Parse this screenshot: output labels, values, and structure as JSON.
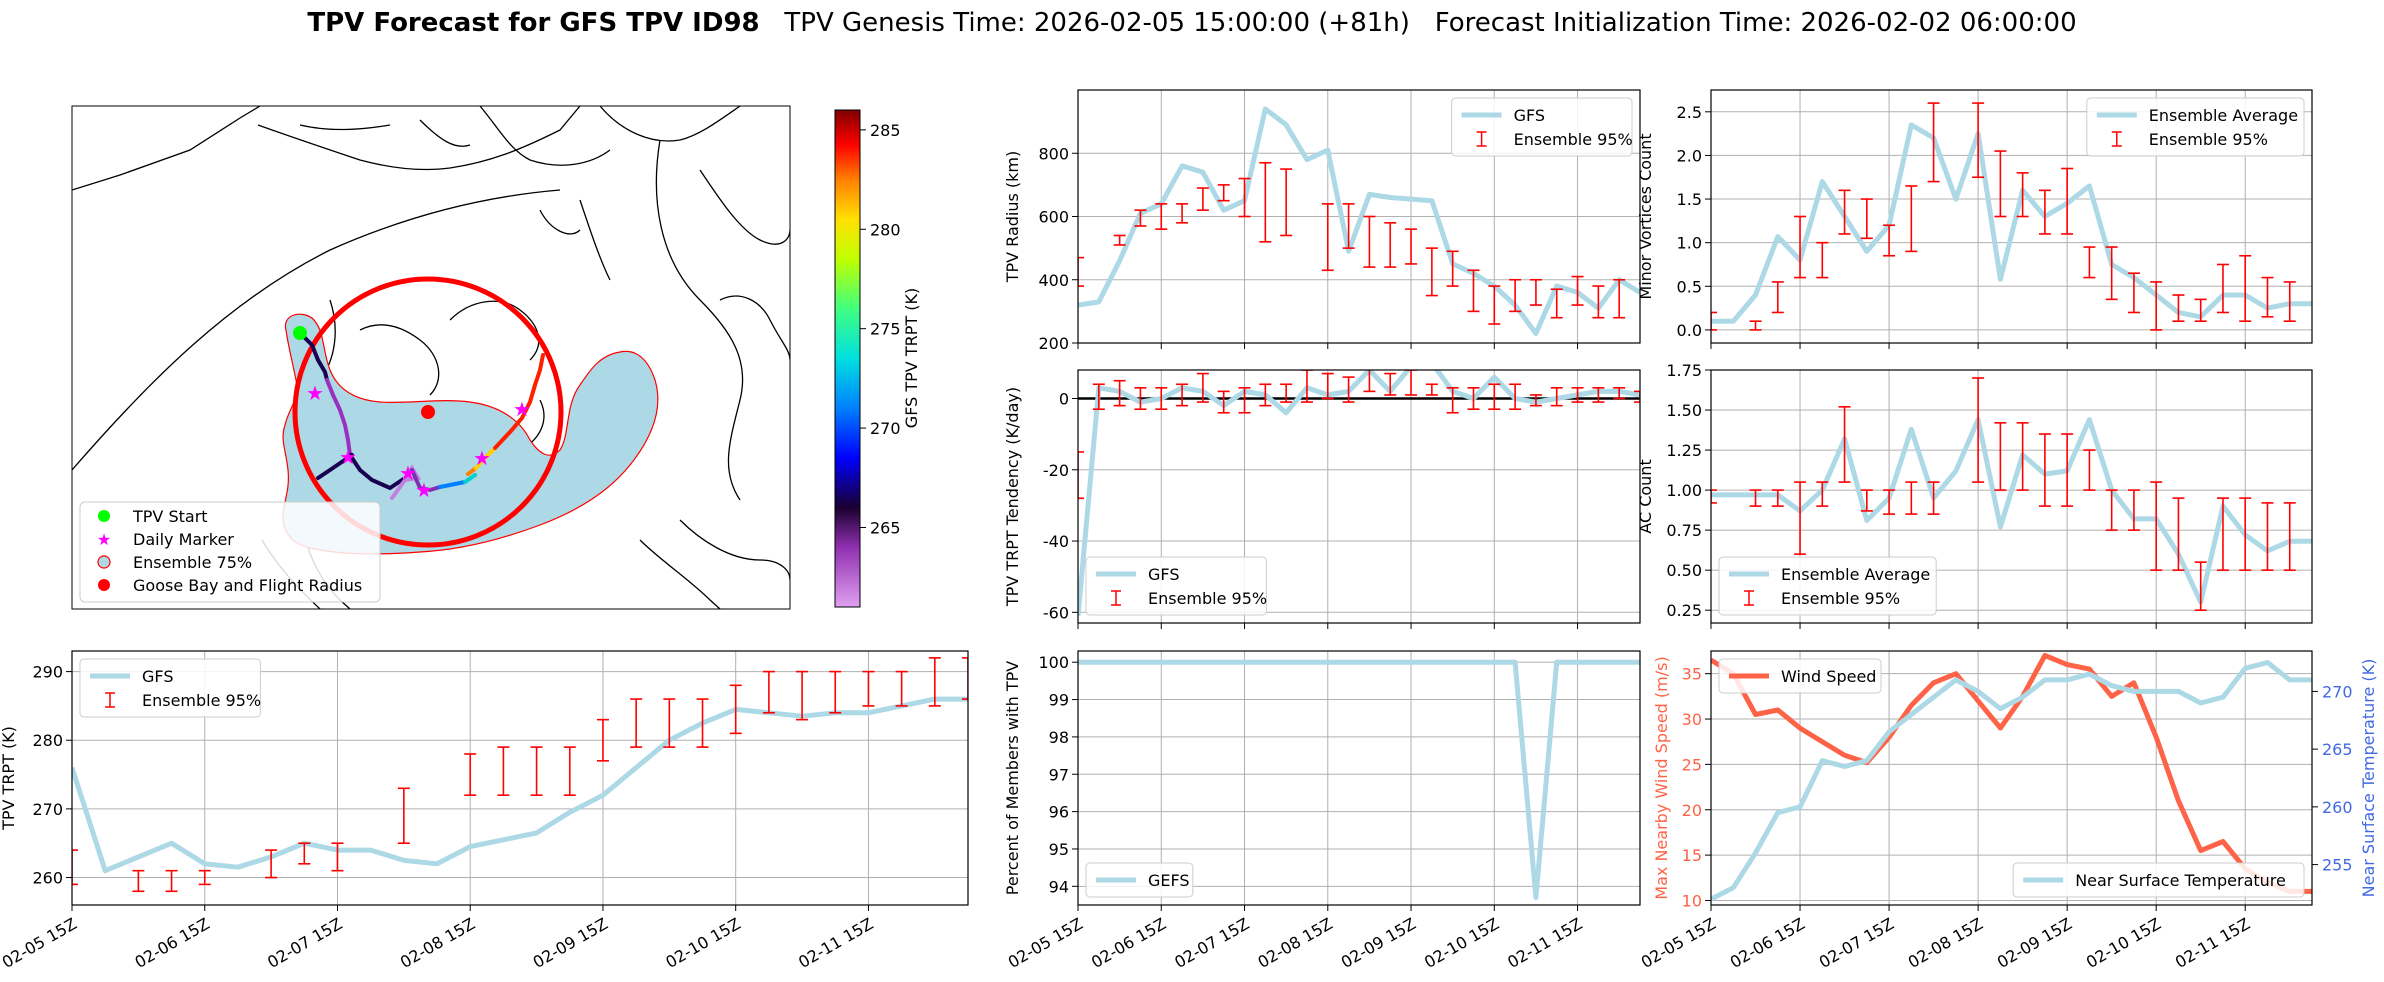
{
  "header": {
    "title_bold": "TPV Forecast for GFS TPV ID98",
    "title_genesis": "TPV Genesis Time: 2026-02-05 15:00:00 (+81h)",
    "title_init": "Forecast Initialization Time: 2026-02-02 06:00:00"
  },
  "colors": {
    "gfs_line": "#add8e6",
    "ensemble_bar": "#ff0000",
    "wind": "#ff6347",
    "temp": "#add8e6",
    "wind_axis": "#ff6347",
    "temp_axis": "#4169e1",
    "tpv_start": "#00ff00",
    "daily_marker": "#ff00ff",
    "goose_bay": "#ff0000",
    "ensemble75": "#add8e6"
  },
  "map": {
    "legend": [
      "TPV Start",
      "Daily Marker",
      "Ensemble 75%",
      "Goose Bay and Flight Radius"
    ],
    "colorbar": {
      "label": "GFS TPV TRPT (K)",
      "ticks": [
        265,
        270,
        275,
        280,
        285
      ],
      "range": [
        261,
        286
      ]
    }
  },
  "time_ticks": [
    "02-05 15Z",
    "02-06 15Z",
    "02-07 15Z",
    "02-08 15Z",
    "02-09 15Z",
    "02-10 15Z",
    "02-11 15Z"
  ],
  "chart_data": [
    {
      "id": "radius",
      "type": "line",
      "ylabel": "TPV Radius (km)",
      "ylim": [
        200,
        1000
      ],
      "yticks": [
        200,
        400,
        600,
        800
      ],
      "legend": [
        "GFS",
        "Ensemble 95%"
      ],
      "legend_pos": "top-right",
      "series": [
        {
          "name": "GFS",
          "x": [
            0,
            0.25,
            0.5,
            0.75,
            1,
            1.25,
            1.5,
            1.75,
            2,
            2.25,
            2.5,
            2.75,
            3,
            3.25,
            3.5,
            3.75,
            4,
            4.25,
            4.5,
            4.75,
            5,
            5.25,
            5.5,
            5.75,
            6,
            6.25,
            6.5,
            6.75
          ],
          "values": [
            320,
            330,
            460,
            610,
            640,
            760,
            740,
            620,
            650,
            940,
            890,
            780,
            810,
            490,
            670,
            660,
            655,
            650,
            450,
            420,
            380,
            320,
            230,
            380,
            360,
            310,
            400,
            360
          ]
        }
      ],
      "ensemble": {
        "x": [
          0,
          0.5,
          0.75,
          1,
          1.25,
          1.5,
          1.75,
          2,
          2.25,
          2.5,
          3,
          3.25,
          3.5,
          3.75,
          4,
          4.25,
          4.5,
          4.75,
          5,
          5.25,
          5.5,
          5.75,
          6,
          6.25,
          6.5
        ],
        "lo": [
          380,
          510,
          570,
          560,
          580,
          620,
          650,
          600,
          520,
          540,
          430,
          500,
          440,
          440,
          450,
          350,
          380,
          300,
          260,
          300,
          320,
          280,
          320,
          280,
          280
        ],
        "hi": [
          470,
          540,
          620,
          640,
          640,
          690,
          700,
          720,
          770,
          750,
          640,
          640,
          600,
          580,
          560,
          500,
          490,
          430,
          380,
          400,
          400,
          370,
          410,
          380,
          400
        ]
      }
    },
    {
      "id": "minor",
      "type": "line",
      "ylabel": "Minor Vortices Count",
      "ylim": [
        -0.15,
        2.75
      ],
      "yticks": [
        0.0,
        0.5,
        1.0,
        1.5,
        2.0,
        2.5
      ],
      "legend": [
        "Ensemble Average",
        "Ensemble 95%"
      ],
      "legend_pos": "top-right",
      "series": [
        {
          "name": "Ensemble Average",
          "x": [
            0,
            0.25,
            0.5,
            0.75,
            1,
            1.25,
            1.5,
            1.75,
            2,
            2.25,
            2.5,
            2.75,
            3,
            3.25,
            3.5,
            3.75,
            4,
            4.25,
            4.5,
            4.75,
            5,
            5.25,
            5.5,
            5.75,
            6,
            6.25,
            6.5,
            6.75
          ],
          "values": [
            0.1,
            0.1,
            0.4,
            1.07,
            0.8,
            1.7,
            1.3,
            0.9,
            1.2,
            2.35,
            2.2,
            1.5,
            2.25,
            0.58,
            1.6,
            1.3,
            1.45,
            1.65,
            0.75,
            0.6,
            0.4,
            0.2,
            0.15,
            0.4,
            0.4,
            0.25,
            0.3,
            0.3
          ]
        }
      ],
      "ensemble": {
        "x": [
          0,
          0.5,
          0.75,
          1,
          1.25,
          1.5,
          1.75,
          2,
          2.25,
          2.5,
          3,
          3.25,
          3.5,
          3.75,
          4,
          4.25,
          4.5,
          4.75,
          5,
          5.25,
          5.5,
          5.75,
          6,
          6.25,
          6.5
        ],
        "lo": [
          0,
          0,
          0.2,
          0.6,
          0.6,
          1.1,
          1.05,
          0.85,
          0.9,
          1.7,
          1.75,
          1.3,
          1.3,
          1.1,
          1.1,
          0.6,
          0.35,
          0.2,
          0,
          0.1,
          0.1,
          0.2,
          0.1,
          0.15,
          0.1
        ],
        "hi": [
          0.2,
          0.1,
          0.55,
          1.3,
          1.0,
          1.6,
          1.5,
          1.2,
          1.65,
          2.6,
          2.6,
          2.05,
          1.8,
          1.6,
          1.85,
          0.95,
          0.95,
          0.65,
          0.55,
          0.4,
          0.35,
          0.75,
          0.85,
          0.6,
          0.55
        ]
      }
    },
    {
      "id": "tendency",
      "type": "line",
      "ylabel": "TPV TRPT Tendency (K/day)",
      "ylim": [
        -63,
        8
      ],
      "yticks": [
        -60,
        -40,
        -20,
        0
      ],
      "legend": [
        "GFS",
        "Ensemble 95%"
      ],
      "legend_pos": "bottom-left",
      "series": [
        {
          "name": "GFS",
          "x": [
            0,
            0.25,
            0.5,
            0.75,
            1,
            1.25,
            1.5,
            1.75,
            2,
            2.25,
            2.5,
            2.75,
            3,
            3.25,
            3.5,
            3.75,
            4,
            4.25,
            4.5,
            4.75,
            5,
            5.25,
            5.5,
            5.75,
            6,
            6.25,
            6.5,
            6.75
          ],
          "values": [
            -61,
            3,
            2,
            -1,
            0,
            3,
            2,
            -2,
            2,
            1,
            -4,
            3,
            1,
            2,
            8,
            2,
            9,
            10,
            2,
            0,
            6,
            0,
            -1,
            0,
            1,
            2,
            2,
            1
          ]
        }
      ],
      "ensemble": {
        "x": [
          0,
          0.25,
          0.5,
          0.75,
          1,
          1.25,
          1.5,
          1.75,
          2,
          2.25,
          2.5,
          2.75,
          3,
          3.25,
          3.5,
          3.75,
          4,
          4.25,
          4.5,
          4.75,
          5,
          5.25,
          5.5,
          5.75,
          6,
          6.25,
          6.5,
          6.75
        ],
        "lo": [
          -28,
          -3,
          -2,
          -3,
          -3,
          -2,
          -1,
          -4,
          -4,
          -2,
          -1,
          -1,
          0,
          -1,
          2,
          1,
          1,
          1,
          -4,
          -3,
          -3,
          -3,
          -2,
          -2,
          -1,
          -1,
          0,
          -1
        ],
        "hi": [
          -15,
          4,
          5,
          3,
          3,
          4,
          7,
          2,
          3,
          4,
          4,
          8,
          7,
          6,
          15,
          7,
          8,
          4,
          3,
          3,
          4,
          4,
          1,
          3,
          3,
          3,
          3,
          2
        ]
      }
    },
    {
      "id": "ac",
      "type": "line",
      "ylabel": "AC Count",
      "ylim": [
        0.17,
        1.75
      ],
      "yticks": [
        0.25,
        0.5,
        0.75,
        1.0,
        1.25,
        1.5,
        1.75
      ],
      "legend": [
        "Ensemble Average",
        "Ensemble 95%"
      ],
      "legend_pos": "bottom-left",
      "series": [
        {
          "name": "Ensemble Average",
          "x": [
            0,
            0.25,
            0.5,
            0.75,
            1,
            1.25,
            1.5,
            1.75,
            2,
            2.25,
            2.5,
            2.75,
            3,
            3.25,
            3.5,
            3.75,
            4,
            4.25,
            4.5,
            4.75,
            5,
            5.25,
            5.5,
            5.75,
            6,
            6.25,
            6.5,
            6.75
          ],
          "values": [
            0.97,
            0.97,
            0.97,
            0.97,
            0.87,
            1.0,
            1.32,
            0.81,
            0.95,
            1.38,
            0.95,
            1.12,
            1.44,
            0.77,
            1.22,
            1.1,
            1.12,
            1.44,
            1.0,
            0.82,
            0.82,
            0.6,
            0.3,
            0.9,
            0.72,
            0.62,
            0.68,
            0.68
          ]
        }
      ],
      "ensemble": {
        "x": [
          0,
          0.5,
          0.75,
          1,
          1.25,
          1.5,
          1.75,
          2,
          2.25,
          2.5,
          3,
          3.25,
          3.5,
          3.75,
          4,
          4.25,
          4.5,
          4.75,
          5,
          5.25,
          5.5,
          5.75,
          6,
          6.25,
          6.5
        ],
        "lo": [
          0.92,
          0.9,
          0.9,
          0.6,
          0.9,
          1.05,
          0.87,
          0.85,
          0.85,
          0.85,
          1.05,
          1.0,
          1.0,
          0.9,
          0.9,
          1.0,
          0.75,
          0.75,
          0.5,
          0.5,
          0.25,
          0.5,
          0.5,
          0.5,
          0.5
        ],
        "hi": [
          1.0,
          1.0,
          1.0,
          1.05,
          1.05,
          1.52,
          1.0,
          1.0,
          1.05,
          1.05,
          1.7,
          1.42,
          1.42,
          1.35,
          1.35,
          1.25,
          1.0,
          1.0,
          1.05,
          0.95,
          0.55,
          0.95,
          0.95,
          0.92,
          0.92
        ]
      }
    },
    {
      "id": "trpt",
      "type": "line",
      "ylabel": "TPV TRPT (K)",
      "ylim": [
        256,
        293
      ],
      "yticks": [
        260,
        270,
        280,
        290
      ],
      "legend": [
        "GFS",
        "Ensemble 95%"
      ],
      "legend_pos": "top-left",
      "series": [
        {
          "name": "GFS",
          "x": [
            0,
            0.25,
            0.5,
            0.75,
            1,
            1.25,
            1.5,
            1.75,
            2,
            2.25,
            2.5,
            2.75,
            3,
            3.25,
            3.5,
            3.75,
            4,
            4.25,
            4.5,
            4.75,
            5,
            5.25,
            5.5,
            5.75,
            6,
            6.25,
            6.5,
            6.75
          ],
          "values": [
            276,
            261,
            263,
            265,
            262,
            261.5,
            263,
            265,
            264,
            264,
            262.5,
            262,
            264.5,
            265.5,
            266.5,
            269.5,
            272,
            276,
            280,
            282.5,
            284.5,
            284,
            283.5,
            284,
            284,
            285,
            286,
            286
          ]
        }
      ],
      "ensemble": {
        "x": [
          0,
          0.5,
          0.75,
          1,
          1.5,
          1.75,
          2,
          2.5,
          3,
          3.25,
          3.5,
          3.75,
          4,
          4.25,
          4.5,
          4.75,
          5,
          5.25,
          5.5,
          5.75,
          6,
          6.25,
          6.5,
          6.75
        ],
        "lo": [
          259,
          258,
          258,
          259,
          260,
          262,
          261,
          265,
          272,
          272,
          272,
          272,
          277,
          279,
          279,
          279,
          281,
          284,
          283,
          284,
          285,
          285,
          285,
          286
        ],
        "hi": [
          264,
          261,
          261,
          261,
          264,
          265,
          265,
          273,
          278,
          279,
          279,
          279,
          283,
          286,
          286,
          286,
          288,
          290,
          290,
          290,
          290,
          290,
          292,
          292
        ]
      }
    },
    {
      "id": "percent",
      "type": "line",
      "ylabel": "Percent of Members with TPV",
      "ylim": [
        93.5,
        100.3
      ],
      "yticks": [
        94,
        95,
        96,
        97,
        98,
        99,
        100
      ],
      "legend": [
        "GEFS"
      ],
      "legend_pos": "bottom-left",
      "series": [
        {
          "name": "GEFS",
          "x": [
            0,
            5.25,
            5.5,
            5.75,
            6.75
          ],
          "values": [
            100,
            100,
            93.7,
            100,
            100
          ]
        }
      ]
    },
    {
      "id": "wind",
      "type": "line",
      "ylabel": "Max Nearby Wind Speed (m/s)",
      "ylim": [
        9.5,
        37.5
      ],
      "yticks": [
        10,
        15,
        20,
        25,
        30,
        35
      ],
      "legend": [
        "Wind Speed"
      ],
      "legend_pos": "top-left",
      "series": [
        {
          "name": "Wind Speed",
          "x": [
            0,
            0.25,
            0.5,
            0.75,
            1,
            1.25,
            1.5,
            1.75,
            2,
            2.25,
            2.5,
            2.75,
            3,
            3.25,
            3.5,
            3.75,
            4,
            4.25,
            4.5,
            4.75,
            5,
            5.25,
            5.5,
            5.75,
            6,
            6.25,
            6.5,
            6.75
          ],
          "values": [
            36.5,
            35,
            30.5,
            31,
            29,
            27.5,
            26,
            25.2,
            28,
            31.5,
            34,
            35,
            32,
            29,
            32.5,
            37,
            36,
            35.5,
            32.5,
            34,
            28,
            21,
            15.5,
            16.5,
            13.5,
            12,
            11,
            11
          ]
        }
      ],
      "temp_ylabel": "Near Surface Temperature (K)",
      "temp_ylim": [
        251.5,
        273.5
      ],
      "temp_yticks": [
        255,
        260,
        265,
        270
      ],
      "temp_legend": [
        "Near Surface Temperature"
      ],
      "temp_legend_pos": "bottom-right",
      "temp_series": {
        "name": "Near Surface Temperature",
        "x": [
          0,
          0.25,
          0.5,
          0.75,
          1,
          1.25,
          1.5,
          1.75,
          2,
          2.25,
          2.5,
          2.75,
          3,
          3.25,
          3.5,
          3.75,
          4,
          4.25,
          4.5,
          4.75,
          5,
          5.25,
          5.5,
          5.75,
          6,
          6.25,
          6.5,
          6.75
        ],
        "values": [
          252,
          253,
          256,
          259.5,
          260,
          264,
          263.5,
          264,
          266.5,
          268,
          269.5,
          271,
          270,
          268.5,
          269.5,
          271,
          271,
          271.5,
          270.5,
          270,
          270,
          270,
          269,
          269.5,
          272,
          272.5,
          271,
          271
        ]
      }
    }
  ]
}
